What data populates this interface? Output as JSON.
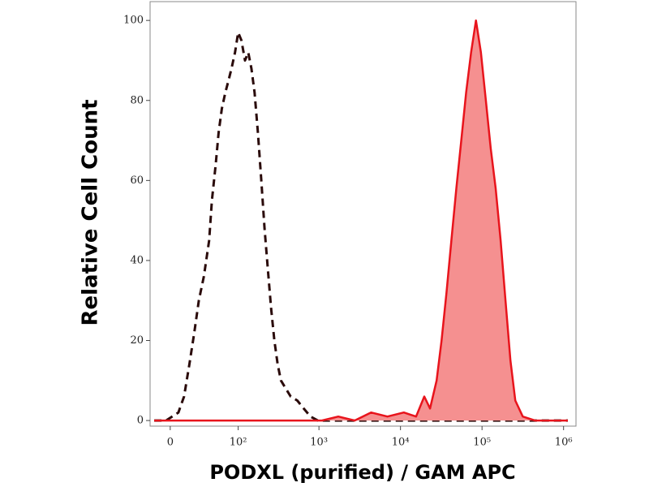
{
  "chart_data": {
    "type": "histogram-overlay",
    "ylabel": "Relative Cell Count",
    "xlabel": "PODXL (purified) / GAM APC",
    "xscale": {
      "type": "arcsinh",
      "cofactor": 30
    },
    "xlim": [
      -18,
      1420000
    ],
    "xticks": [
      0,
      {
        "value": 100,
        "label": "10²"
      },
      {
        "value": 1000,
        "label": "10³"
      },
      {
        "value": 10000,
        "label": "10⁴"
      },
      {
        "value": 100000,
        "label": "10⁵"
      },
      {
        "value": 1000000,
        "label": "10⁶"
      }
    ],
    "ylim": [
      -1.4,
      104.7
    ],
    "yticks": [
      0,
      20,
      40,
      60,
      80,
      100
    ],
    "series": [
      {
        "color": "#2a0a0a",
        "linestyle": "dashed",
        "x": [
          -14,
          -3.5,
          7,
          12,
          17,
          22,
          27,
          33,
          40,
          44,
          50,
          55,
          61,
          68,
          75,
          82,
          91,
          100,
          110,
          122,
          134,
          147,
          161,
          177,
          195,
          214,
          235,
          258,
          283,
          311,
          341,
          392,
          450,
          542,
          651,
          786,
          966,
          1370,
          3460,
          1130000
        ],
        "values": [
          0,
          0,
          2,
          6,
          14,
          22,
          30,
          36,
          45,
          55,
          64,
          72,
          78,
          82,
          85,
          88,
          92,
          97,
          95,
          90,
          92,
          88,
          82,
          72,
          60,
          48,
          38,
          28,
          20,
          14,
          10,
          8,
          6,
          5,
          3,
          1,
          0,
          0,
          0,
          0
        ]
      },
      {
        "color": "#e8141c",
        "fill": "#f59090",
        "linestyle": "solid",
        "x": [
          -14,
          1086,
          1725,
          2741,
          4355,
          6917,
          10990,
          15540,
          19600,
          23060,
          27750,
          31880,
          36640,
          42110,
          48390,
          55600,
          63830,
          73350,
          84300,
          96870,
          111300,
          127900,
          147000,
          168900,
          194100,
          222900,
          256200,
          315800,
          446600,
          1130000
        ],
        "values": [
          0,
          0,
          1,
          0,
          2,
          1,
          2,
          1,
          6,
          3,
          10,
          20,
          32,
          45,
          58,
          70,
          82,
          92,
          100,
          92,
          80,
          68,
          58,
          45,
          30,
          15,
          5,
          1,
          0,
          0
        ]
      }
    ]
  }
}
